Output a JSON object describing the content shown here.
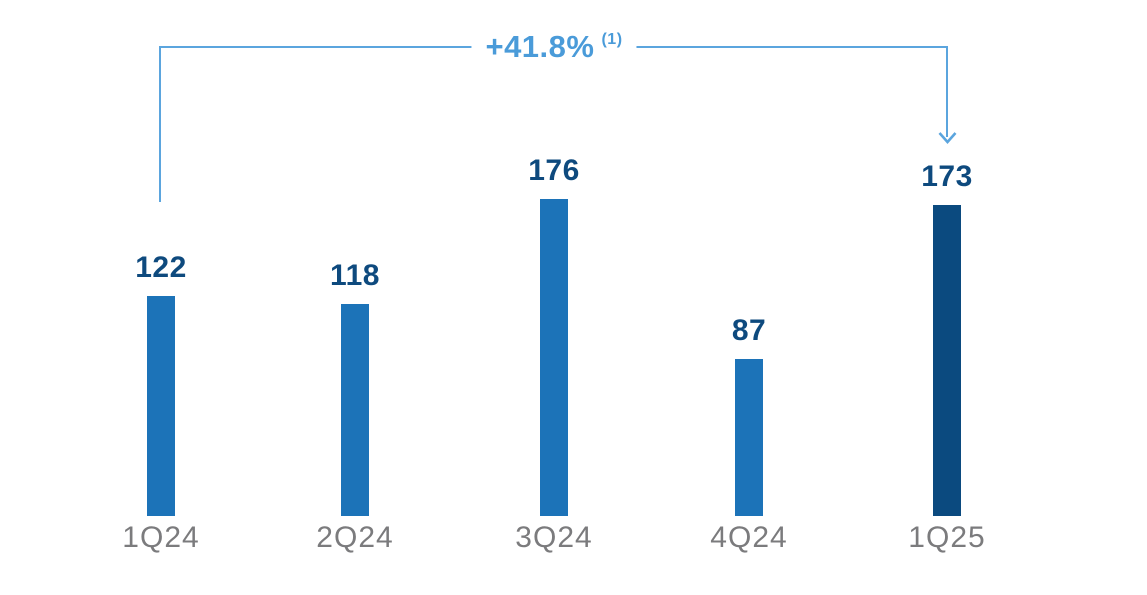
{
  "page": {
    "background": "#ffffff"
  },
  "chart_data": {
    "type": "bar",
    "categories": [
      "1Q24",
      "2Q24",
      "3Q24",
      "4Q24",
      "1Q25"
    ],
    "values": [
      122,
      118,
      176,
      87,
      173
    ],
    "title": "",
    "xlabel": "",
    "ylabel": "",
    "grid": false,
    "legend": false,
    "axes_visible": false,
    "highlight_index": 4,
    "colors": {
      "bar_default": "#1c73b8",
      "bar_highlight": "#0b4a7f",
      "value_label": "#0e4a7e",
      "axis_label": "#7b7b7d",
      "annotation": "#4a9bd9",
      "annotation_line": "#5ba5de"
    },
    "annotation": {
      "text": "+41.8%",
      "superscript": "(1)",
      "from_category": "1Q24",
      "to_category": "1Q25"
    }
  }
}
